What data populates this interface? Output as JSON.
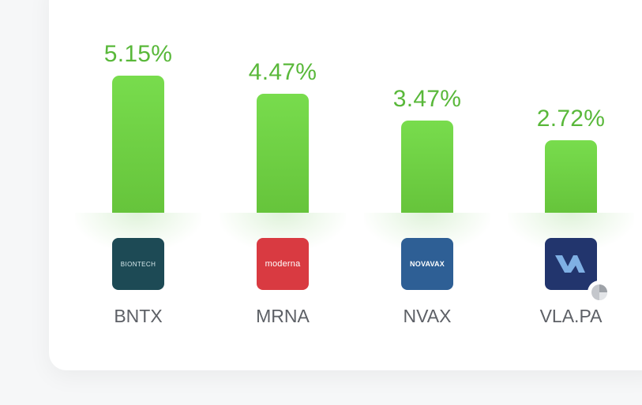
{
  "chart_data": {
    "type": "bar",
    "categories": [
      "BNTX",
      "MRNA",
      "NVAX",
      "VLA.PA"
    ],
    "values": [
      5.15,
      4.47,
      3.47,
      2.72
    ],
    "value_labels": [
      "5.15%",
      "4.47%",
      "3.47%",
      "2.72%"
    ],
    "title": "",
    "xlabel": "",
    "ylabel": "",
    "grid": false,
    "legend": "none",
    "bar_color": "#6fd244",
    "label_color": "#59b83a"
  },
  "logos": [
    {
      "ticker": "BNTX",
      "text": "BIONTECH",
      "bg": "#1d4a55",
      "icon": "biontech-logo-icon"
    },
    {
      "ticker": "MRNA",
      "text": "moderna",
      "bg": "#d93a41",
      "icon": "moderna-logo-icon"
    },
    {
      "ticker": "NVAX",
      "text": "NOVAVAX",
      "bg": "#2e5f95",
      "icon": "novavax-logo-icon"
    },
    {
      "ticker": "VLA.PA",
      "text": "",
      "bg": "#22356d",
      "icon": "valneva-logo-icon",
      "badge": "pie-chart-icon"
    }
  ]
}
